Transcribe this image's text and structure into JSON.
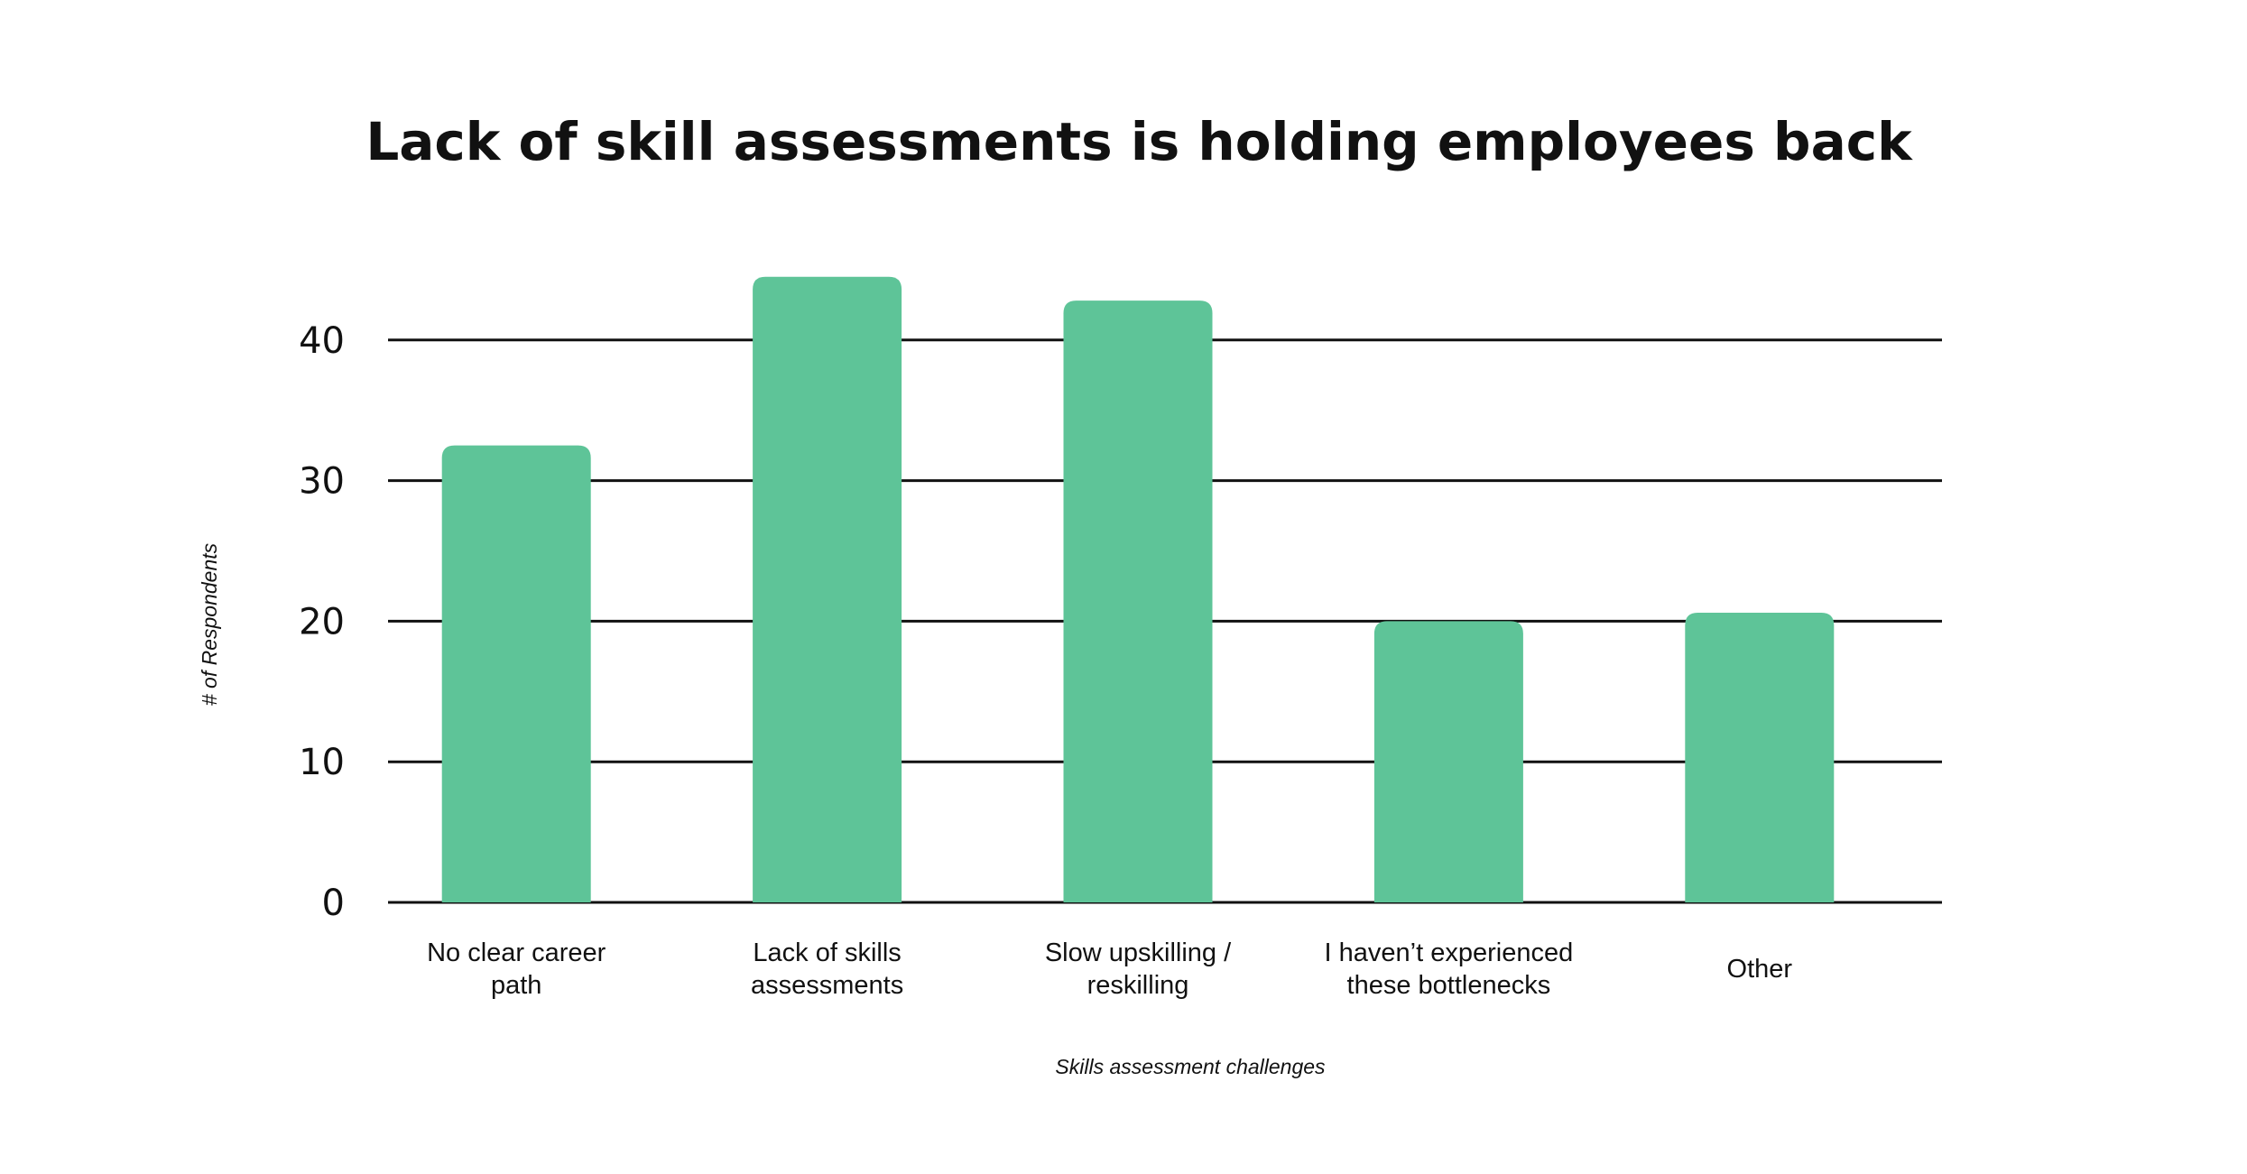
{
  "chart_data": {
    "type": "bar",
    "title": "Lack of skill assessments is holding employees back",
    "xlabel": "Skills assessment challenges",
    "ylabel": "# of Respondents",
    "categories": [
      [
        "No clear career",
        "path"
      ],
      [
        "Lack of skills",
        "assessments"
      ],
      [
        "Slow upskilling /",
        "reskilling"
      ],
      [
        "I haven’t experienced",
        "these bottlenecks"
      ],
      [
        "Other"
      ]
    ],
    "values": [
      32.5,
      44.5,
      42.8,
      20,
      20.6
    ],
    "yticks": [
      "0",
      "10",
      "20",
      "30",
      "40"
    ],
    "ylim": [
      0,
      48
    ],
    "grid": true,
    "color": "#5ec498"
  }
}
